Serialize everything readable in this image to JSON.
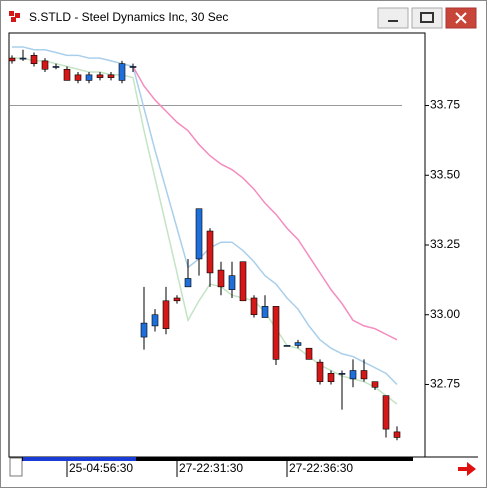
{
  "chart_data": {
    "type": "candlestick",
    "title": "S.STLD - Steel Dynamics Inc, 30 Sec",
    "categories": [
      null,
      null,
      null,
      null,
      null,
      "25-04:56:30",
      null,
      null,
      null,
      null,
      null,
      null,
      null,
      null,
      null,
      "27-22:31:30",
      null,
      null,
      null,
      null,
      null,
      null,
      null,
      null,
      null,
      "27-22:36:30",
      null,
      null,
      null,
      null,
      null,
      null,
      null,
      null,
      null,
      null
    ],
    "open": [
      33.92,
      33.92,
      33.93,
      33.91,
      33.89,
      33.88,
      33.86,
      33.84,
      33.86,
      33.86,
      33.84,
      33.89,
      32.92,
      32.96,
      33.05,
      33.06,
      33.1,
      33.2,
      33.3,
      33.16,
      33.09,
      33.19,
      33.06,
      32.99,
      33.03,
      32.89,
      32.89,
      32.88,
      32.83,
      32.79,
      32.79,
      32.77,
      32.8,
      32.76,
      32.71,
      32.58
    ],
    "high": [
      33.93,
      33.95,
      33.94,
      33.92,
      33.9,
      33.89,
      33.87,
      33.87,
      33.87,
      33.87,
      33.91,
      33.9,
      33.1,
      33.02,
      33.1,
      33.07,
      33.2,
      33.38,
      33.31,
      33.19,
      33.19,
      33.19,
      33.07,
      33.07,
      33.03,
      32.89,
      32.91,
      32.88,
      32.84,
      32.8,
      32.8,
      32.84,
      32.84,
      32.76,
      32.71,
      32.6
    ],
    "low": [
      33.9,
      33.91,
      33.89,
      33.87,
      33.88,
      33.84,
      33.83,
      33.83,
      33.84,
      33.84,
      33.83,
      33.87,
      32.875,
      32.94,
      32.93,
      33.04,
      33.1,
      33.14,
      33.1,
      33.07,
      33.06,
      33.05,
      32.99,
      32.99,
      32.82,
      32.89,
      32.88,
      32.84,
      32.75,
      32.75,
      32.66,
      32.74,
      32.76,
      32.73,
      32.56,
      32.55
    ],
    "close": [
      33.91,
      33.92,
      33.9,
      33.88,
      33.89,
      33.84,
      33.84,
      33.86,
      33.85,
      33.85,
      33.9,
      33.89,
      32.97,
      33.0,
      32.95,
      33.05,
      33.13,
      33.38,
      33.15,
      33.1,
      33.14,
      33.05,
      33.0,
      33.03,
      32.84,
      32.89,
      32.9,
      32.84,
      32.76,
      32.76,
      32.79,
      32.8,
      32.77,
      32.74,
      32.59,
      32.56
    ],
    "up_color": "#1e6fd9",
    "down_color": "#d41818",
    "lines": [
      {
        "color": "#a9cfea",
        "values": [
          33.96,
          33.96,
          33.95,
          33.95,
          33.94,
          33.93,
          33.93,
          33.92,
          33.92,
          33.91,
          33.9,
          33.89,
          33.74,
          33.59,
          33.45,
          33.31,
          33.17,
          33.2,
          33.24,
          33.26,
          33.26,
          33.23,
          33.19,
          33.14,
          33.11,
          33.06,
          33.02,
          32.96,
          32.91,
          32.88,
          32.86,
          32.85,
          32.83,
          32.81,
          32.79,
          32.75
        ]
      },
      {
        "color": "#c4e4c4",
        "values": [
          33.92,
          33.92,
          33.91,
          33.91,
          33.9,
          33.89,
          33.88,
          33.87,
          33.87,
          33.86,
          33.86,
          33.85,
          33.66,
          33.49,
          33.32,
          33.15,
          32.98,
          33.05,
          33.11,
          33.1,
          33.07,
          33.06,
          33.05,
          33.01,
          32.95,
          32.89,
          32.88,
          32.85,
          32.82,
          32.8,
          32.78,
          32.77,
          32.76,
          32.74,
          32.71,
          32.68
        ]
      },
      {
        "color": "#f48cbf",
        "values": [
          null,
          null,
          null,
          null,
          null,
          null,
          null,
          null,
          null,
          null,
          null,
          33.89,
          33.82,
          33.77,
          33.73,
          33.69,
          33.66,
          33.61,
          33.57,
          33.54,
          33.52,
          33.49,
          33.45,
          33.4,
          33.36,
          33.31,
          33.27,
          33.21,
          33.15,
          33.09,
          33.04,
          32.98,
          32.96,
          32.95,
          32.93,
          32.91
        ]
      }
    ],
    "reference_line": 33.75,
    "ylim": [
      32.49,
      34.01
    ],
    "yticks": [
      {
        "value": 32.75,
        "label": "32.75"
      },
      {
        "value": 33,
        "label": "33.00"
      },
      {
        "value": 33.25,
        "label": "33.25"
      },
      {
        "value": 33.5,
        "label": "33.50"
      },
      {
        "value": 33.75,
        "label": "33.75"
      }
    ]
  }
}
